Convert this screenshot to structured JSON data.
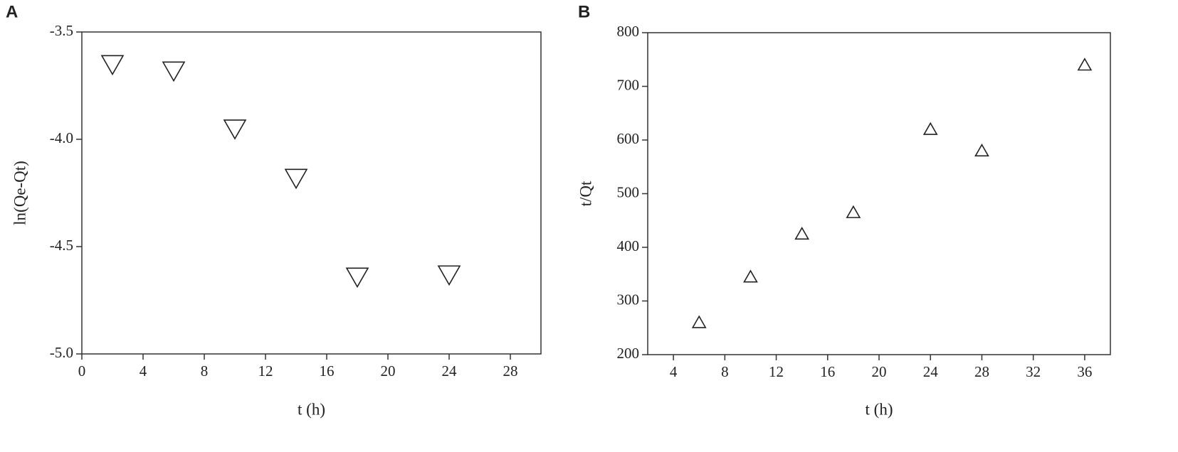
{
  "chart_data": [
    {
      "type": "scatter",
      "panel_label": "A",
      "x_label": "t (h)",
      "y_label": "ln(Qe-Qt)",
      "marker": "triangle-down",
      "color": "#222222",
      "x": [
        2,
        6,
        10,
        14,
        18,
        24
      ],
      "values": [
        -3.65,
        -3.68,
        -3.95,
        -4.18,
        -4.64,
        -4.63
      ],
      "xlim": [
        0,
        30
      ],
      "xticks": [
        0,
        4,
        8,
        12,
        16,
        20,
        24,
        28
      ],
      "ylim": [
        -5.0,
        -3.5
      ],
      "yticks": [
        {
          "value": -5.0,
          "label": "-5.0"
        },
        {
          "value": -4.5,
          "label": "-4.5"
        },
        {
          "value": -4.0,
          "label": "-4.0"
        },
        {
          "value": -3.5,
          "label": "-3.5"
        }
      ]
    },
    {
      "type": "scatter",
      "panel_label": "B",
      "x_label": "t (h)",
      "y_label": "t/Qt",
      "marker": "triangle-up",
      "color": "#222222",
      "x": [
        6,
        10,
        14,
        18,
        24,
        28,
        36
      ],
      "values": [
        260,
        345,
        425,
        465,
        620,
        580,
        740
      ],
      "xlim": [
        2,
        38
      ],
      "xticks": [
        4,
        8,
        12,
        16,
        20,
        24,
        28,
        32,
        36
      ],
      "ylim": [
        200,
        800
      ],
      "yticks": [
        200,
        300,
        400,
        500,
        600,
        700,
        800
      ]
    }
  ]
}
